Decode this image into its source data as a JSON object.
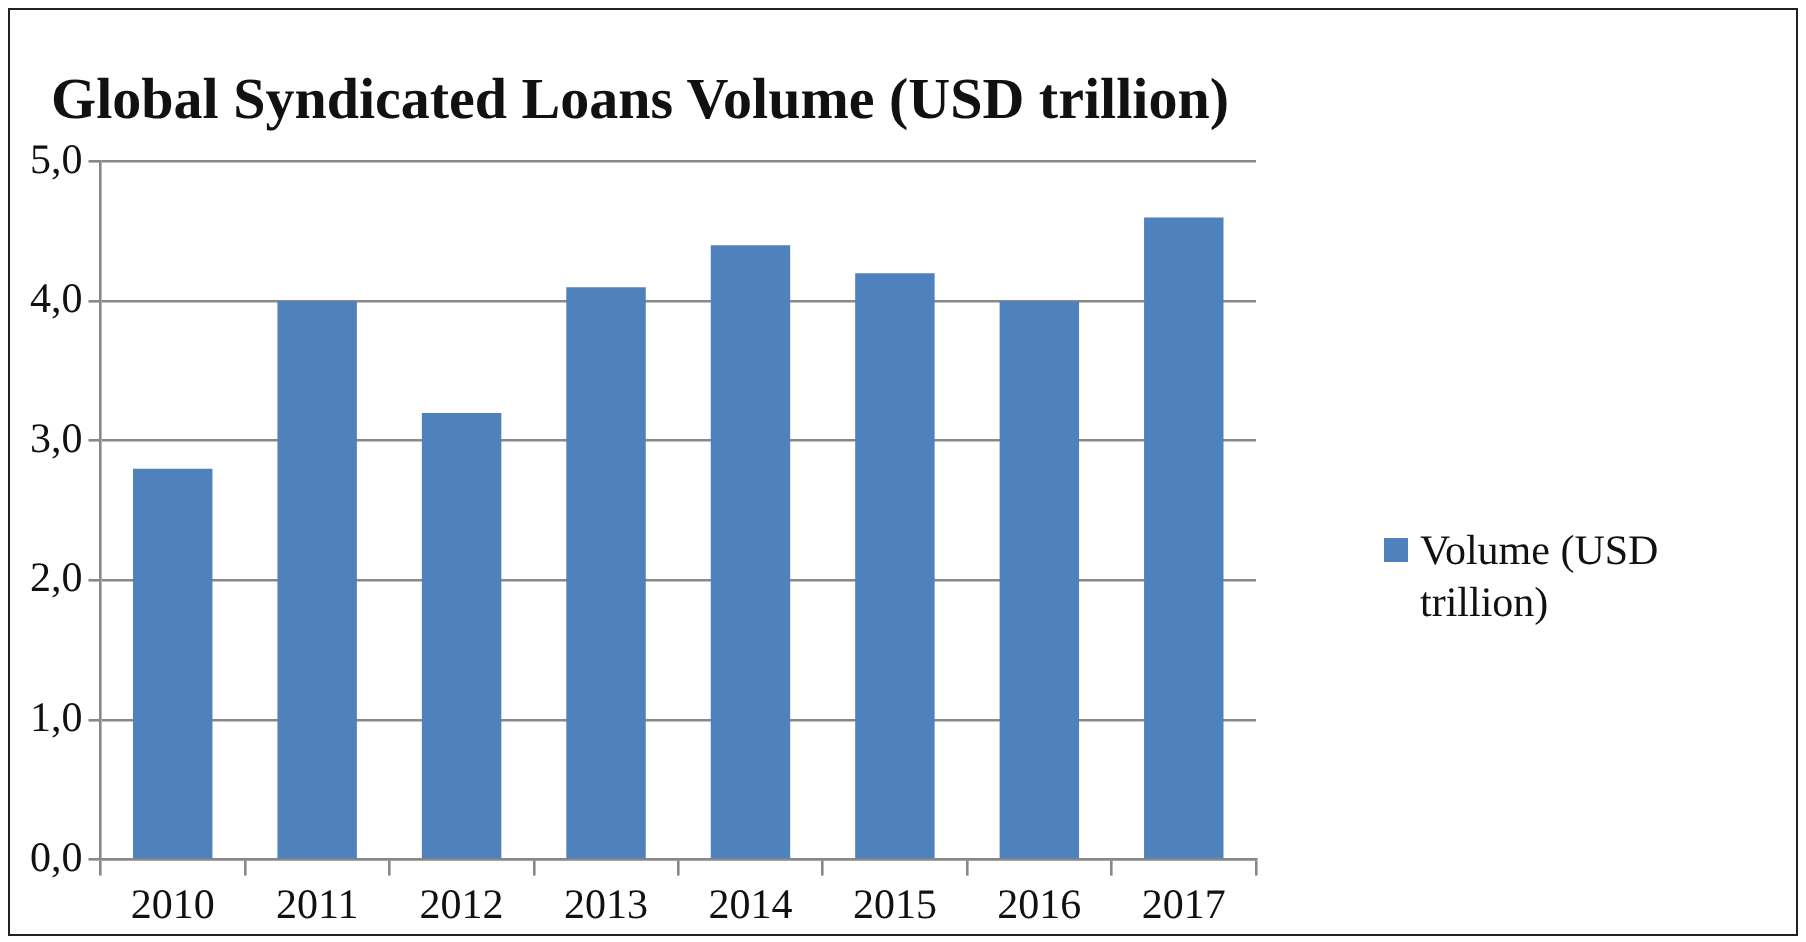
{
  "chart_data": {
    "type": "bar",
    "title": "Global Syndicated Loans Volume (USD trillion)",
    "categories": [
      "2010",
      "2011",
      "2012",
      "2013",
      "2014",
      "2015",
      "2016",
      "2017"
    ],
    "series": [
      {
        "name": "Volume (USD trillion)",
        "color": "#4f81bd",
        "values": [
          2.8,
          4.0,
          3.2,
          4.1,
          4.4,
          4.2,
          4.0,
          4.6
        ]
      }
    ],
    "ylim": [
      0,
      5
    ],
    "yticks": [
      {
        "value": 0,
        "label": "0,0"
      },
      {
        "value": 1,
        "label": "1,0"
      },
      {
        "value": 2,
        "label": "2,0"
      },
      {
        "value": 3,
        "label": "3,0"
      },
      {
        "value": 4,
        "label": "4,0"
      },
      {
        "value": 5,
        "label": "5,0"
      }
    ],
    "grid": "y",
    "legend": "right"
  }
}
